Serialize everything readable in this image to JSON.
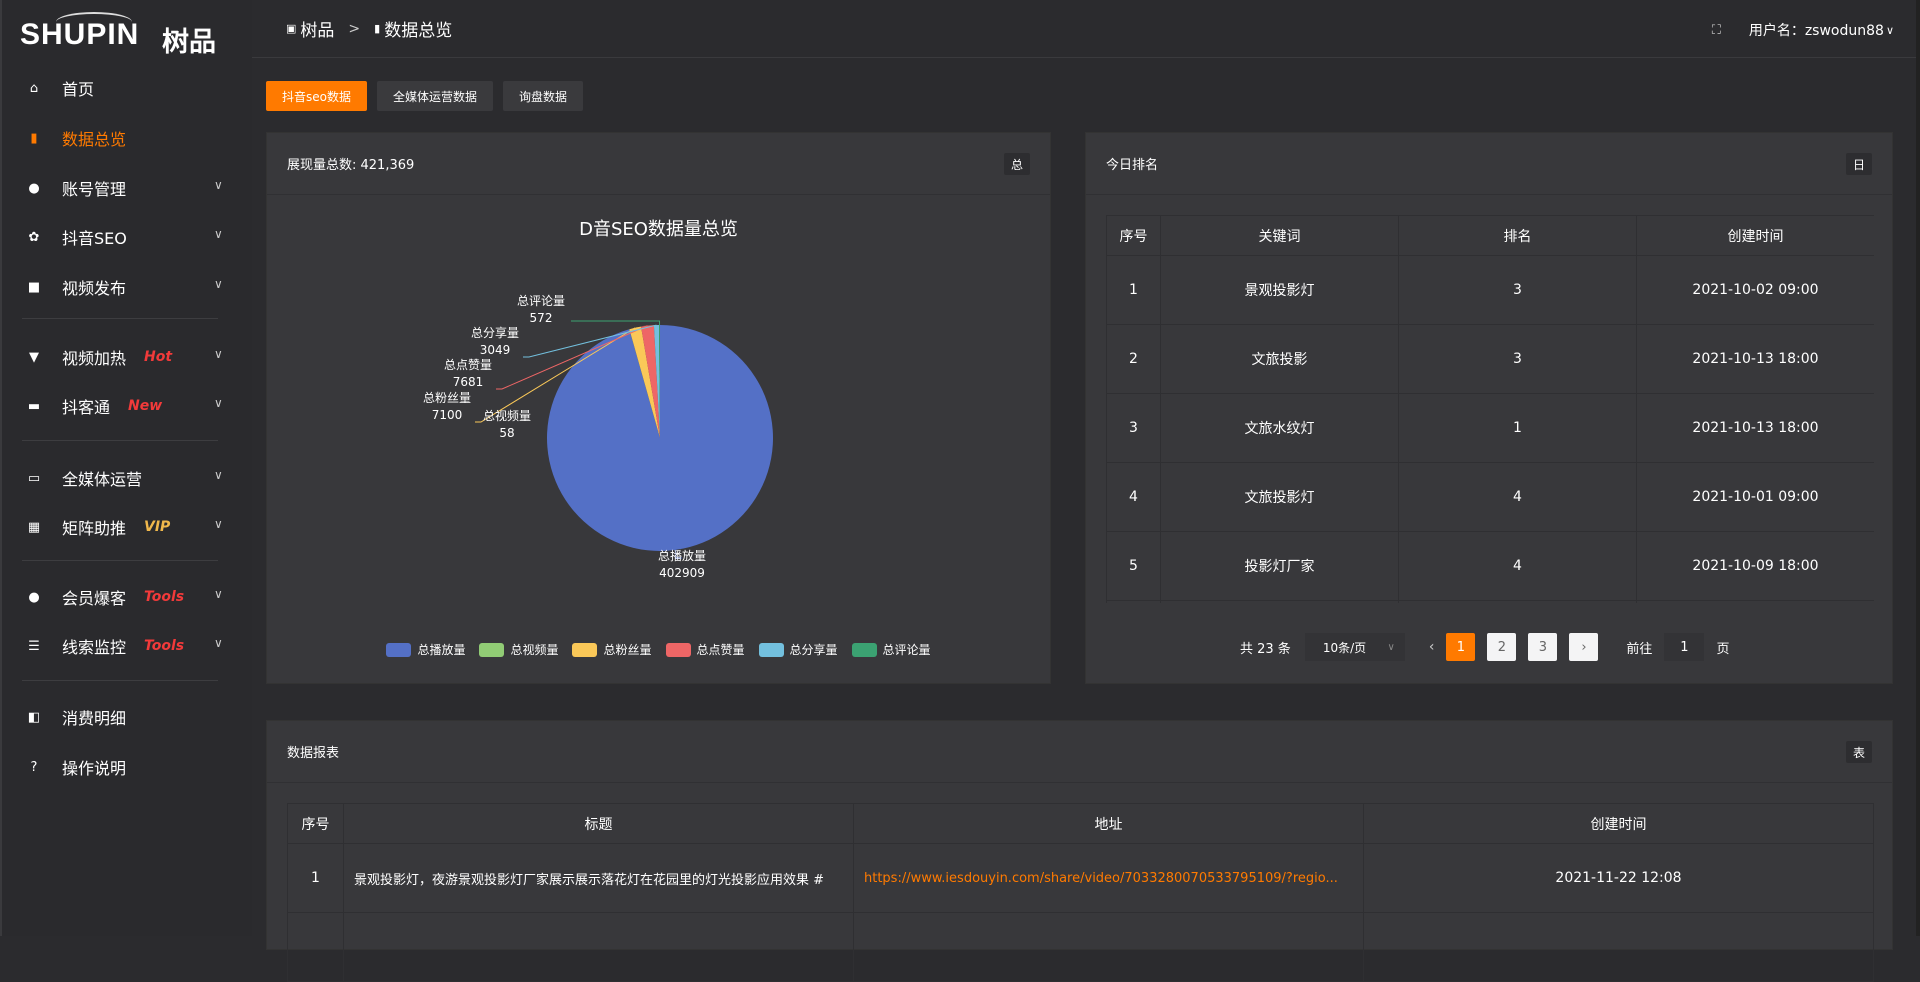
{
  "logo": {
    "en": "SHUPIN",
    "cn": "树品"
  },
  "header": {
    "crumbs": [
      "树品",
      "数据总览"
    ],
    "user_label": "用户名：zswodun88"
  },
  "sidebar": {
    "items": [
      {
        "label": "首页",
        "icon": "home-icon"
      },
      {
        "label": "数据总览",
        "icon": "bar-chart-icon"
      },
      {
        "label": "账号管理",
        "icon": "user-icon"
      },
      {
        "label": "抖音SEO",
        "icon": "gear-icon"
      },
      {
        "label": "视频发布",
        "icon": "camera-icon"
      },
      {
        "label": "视频加热",
        "icon": "brush-icon",
        "badge": "Hot"
      },
      {
        "label": "抖客通",
        "icon": "chat-icon",
        "badge": "New"
      },
      {
        "label": "全媒体运营",
        "icon": "monitor-icon"
      },
      {
        "label": "矩阵助推",
        "icon": "grid-icon",
        "badge": "VIP"
      },
      {
        "label": "会员爆客",
        "icon": "user-icon",
        "badge": "Tools"
      },
      {
        "label": "线索监控",
        "icon": "sliders-icon",
        "badge": "Tools"
      },
      {
        "label": "消费明细",
        "icon": "wallet-icon"
      },
      {
        "label": "操作说明",
        "icon": "question-icon"
      }
    ]
  },
  "tabs": [
    "抖音seo数据",
    "全媒体运营数据",
    "询盘数据"
  ],
  "overview": {
    "title": "展现量总数: 421,369",
    "tag": "总"
  },
  "chart_data": {
    "type": "pie",
    "title": "D音SEO数据量总览",
    "legend_position": "bottom",
    "categories": [
      "总播放量",
      "总视频量",
      "总粉丝量",
      "总点赞量",
      "总分享量",
      "总评论量"
    ],
    "values": [
      402909,
      58,
      7100,
      7681,
      3049,
      572
    ],
    "colors": [
      "#5470c6",
      "#91cc75",
      "#fac858",
      "#ee6666",
      "#73c0de",
      "#3ba272"
    ]
  },
  "ranking": {
    "title": "今日排名",
    "tag": "日",
    "columns": [
      "序号",
      "关键词",
      "排名",
      "创建时间"
    ],
    "rows": [
      [
        "1",
        "景观投影灯",
        "3",
        "2021-10-02 09:00"
      ],
      [
        "2",
        "文旅投影",
        "3",
        "2021-10-13 18:00"
      ],
      [
        "3",
        "文旅水纹灯",
        "1",
        "2021-10-13 18:00"
      ],
      [
        "4",
        "文旅投影灯",
        "4",
        "2021-10-01 09:00"
      ],
      [
        "5",
        "投影灯厂家",
        "4",
        "2021-10-09 18:00"
      ]
    ],
    "pager": {
      "total": "共 23 条",
      "size": "10条/页",
      "pages": [
        "1",
        "2",
        "3"
      ],
      "current": 1,
      "goto": "前往",
      "goto_value": "1",
      "unit": "页"
    }
  },
  "report": {
    "title": "数据报表",
    "tag": "表",
    "columns": [
      "序号",
      "标题",
      "地址",
      "创建时间"
    ],
    "rows": [
      [
        "1",
        "景观投影灯，夜游景观投影灯厂家展示展示落花灯在花园里的灯光投影应用效果 #",
        "https://www.iesdouyin.com/share/video/7033280070533795109/?regio...",
        "2021-11-22 12:08"
      ]
    ]
  },
  "accent": "#ff7a00"
}
